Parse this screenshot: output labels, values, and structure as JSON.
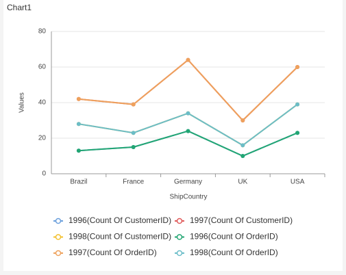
{
  "chart_data": {
    "type": "line",
    "title": "Chart1",
    "x_label": "ShipCountry",
    "y_label": "Values",
    "categories": [
      "Brazil",
      "France",
      "Germany",
      "UK",
      "USA"
    ],
    "ylim": [
      0,
      80
    ],
    "yticks": [
      0,
      20,
      40,
      60,
      80
    ],
    "grid": true,
    "series": [
      {
        "name": "1996(Count Of CustomerID)",
        "color": "#6a9fdc",
        "values": [
          13,
          15,
          24,
          10,
          23
        ]
      },
      {
        "name": "1997(Count Of CustomerID)",
        "color": "#e05a5a",
        "values": [
          42,
          39,
          64,
          30,
          60
        ]
      },
      {
        "name": "1998(Count Of CustomerID)",
        "color": "#f3c02c",
        "values": [
          28,
          23,
          34,
          16,
          39
        ]
      },
      {
        "name": "1996(Count Of OrderID)",
        "color": "#22a673",
        "values": [
          13,
          15,
          24,
          10,
          23
        ]
      },
      {
        "name": "1997(Count Of OrderID)",
        "color": "#eea15c",
        "values": [
          42,
          39,
          64,
          30,
          60
        ]
      },
      {
        "name": "1998(Count Of OrderID)",
        "color": "#6bbdc8",
        "values": [
          28,
          23,
          34,
          16,
          39
        ]
      }
    ]
  }
}
